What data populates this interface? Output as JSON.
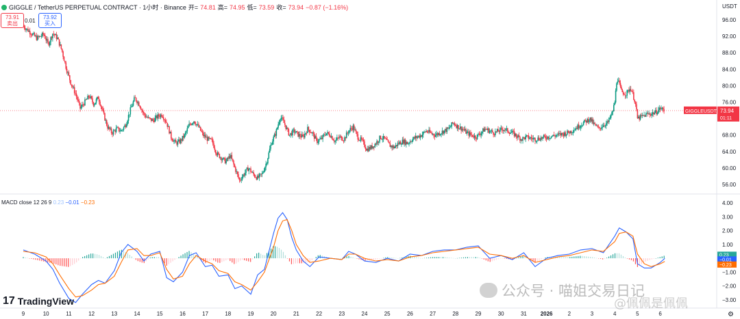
{
  "header": {
    "symbol": "GIGGLE / TetherUS PERPETUAL CONTRACT · 1小时 · Binance",
    "open_label": "开=",
    "open": "74.81",
    "high_label": "高=",
    "high": "74.95",
    "low_label": "低=",
    "low": "73.59",
    "close_label": "收=",
    "close": "73.94",
    "change": "−0.87 (−1.16%)",
    "sell_price": "73.91",
    "sell_label": "卖出",
    "spread": "0.01",
    "buy_price": "73.92",
    "buy_label": "买入",
    "currency": "USDT"
  },
  "macd_header": {
    "name": "MACD close 12 26 9",
    "histogram": "0.23",
    "macd": "−0.01",
    "signal": "−0.23"
  },
  "branding": {
    "logo_mark": "17",
    "logo_text": "TradingView",
    "watermark": "公众号 · 喵姐交易日记",
    "watermark2": "@佩佩是佩佩"
  },
  "chart_data": [
    {
      "type": "candlestick",
      "title": "GIGGLE / TetherUS PERPETUAL CONTRACT · 1小时 · Binance",
      "xlabel": "",
      "ylabel": "USDT",
      "x_ticks": [
        "9",
        "10",
        "11",
        "12",
        "13",
        "14",
        "15",
        "16",
        "17",
        "18",
        "19",
        "20",
        "21",
        "22",
        "23",
        "24",
        "25",
        "26",
        "27",
        "28",
        "29",
        "30",
        "31",
        "2026",
        "2",
        "3",
        "4",
        "5",
        "6"
      ],
      "y_ticks": [
        56,
        60,
        64,
        68,
        72,
        76,
        80,
        84,
        88,
        92,
        96
      ],
      "ylim": [
        54,
        98
      ],
      "close_path": [
        [
          9.0,
          94.5
        ],
        [
          9.3,
          93.0
        ],
        [
          9.6,
          91.5
        ],
        [
          9.9,
          92.5
        ],
        [
          10.1,
          90.0
        ],
        [
          10.3,
          92.8
        ],
        [
          10.5,
          91.5
        ],
        [
          10.7,
          88.5
        ],
        [
          10.9,
          84.0
        ],
        [
          11.1,
          80.5
        ],
        [
          11.3,
          78.0
        ],
        [
          11.5,
          74.5
        ],
        [
          11.7,
          76.0
        ],
        [
          11.9,
          77.5
        ],
        [
          12.1,
          75.5
        ],
        [
          12.3,
          77.2
        ],
        [
          12.5,
          73.5
        ],
        [
          12.7,
          70.0
        ],
        [
          12.9,
          68.5
        ],
        [
          13.1,
          69.5
        ],
        [
          13.3,
          69.0
        ],
        [
          13.5,
          70.5
        ],
        [
          13.7,
          74.0
        ],
        [
          13.9,
          77.0
        ],
        [
          14.1,
          75.5
        ],
        [
          14.3,
          73.0
        ],
        [
          14.5,
          72.0
        ],
        [
          14.7,
          71.5
        ],
        [
          14.9,
          72.5
        ],
        [
          15.1,
          73.0
        ],
        [
          15.3,
          71.0
        ],
        [
          15.5,
          67.5
        ],
        [
          15.7,
          66.0
        ],
        [
          15.9,
          66.5
        ],
        [
          16.1,
          68.0
        ],
        [
          16.3,
          70.5
        ],
        [
          16.5,
          71.5
        ],
        [
          16.7,
          70.0
        ],
        [
          16.9,
          68.0
        ],
        [
          17.1,
          67.0
        ],
        [
          17.3,
          66.5
        ],
        [
          17.5,
          63.5
        ],
        [
          17.7,
          62.5
        ],
        [
          17.9,
          61.5
        ],
        [
          18.1,
          63.0
        ],
        [
          18.3,
          60.0
        ],
        [
          18.5,
          57.0
        ],
        [
          18.7,
          58.5
        ],
        [
          18.9,
          60.0
        ],
        [
          19.1,
          58.5
        ],
        [
          19.3,
          57.5
        ],
        [
          19.5,
          58.5
        ],
        [
          19.7,
          61.5
        ],
        [
          19.9,
          66.0
        ],
        [
          20.1,
          68.5
        ],
        [
          20.3,
          72.5
        ],
        [
          20.5,
          70.5
        ],
        [
          20.7,
          68.0
        ],
        [
          20.9,
          69.0
        ],
        [
          21.1,
          68.0
        ],
        [
          21.3,
          67.5
        ],
        [
          21.5,
          69.5
        ],
        [
          21.7,
          68.5
        ],
        [
          21.9,
          66.5
        ],
        [
          22.1,
          67.0
        ],
        [
          22.3,
          68.5
        ],
        [
          22.5,
          68.0
        ],
        [
          22.7,
          66.5
        ],
        [
          22.9,
          67.5
        ],
        [
          23.1,
          67.0
        ],
        [
          23.3,
          69.0
        ],
        [
          23.5,
          70.0
        ],
        [
          23.7,
          67.5
        ],
        [
          23.9,
          66.5
        ],
        [
          24.1,
          64.5
        ],
        [
          24.3,
          65.0
        ],
        [
          24.5,
          66.0
        ],
        [
          24.7,
          67.5
        ],
        [
          24.9,
          67.0
        ],
        [
          25.1,
          65.5
        ],
        [
          25.3,
          65.0
        ],
        [
          25.5,
          66.0
        ],
        [
          25.7,
          66.5
        ],
        [
          25.9,
          66.0
        ],
        [
          26.1,
          67.0
        ],
        [
          26.3,
          67.5
        ],
        [
          26.5,
          68.0
        ],
        [
          26.7,
          69.0
        ],
        [
          26.9,
          68.5
        ],
        [
          27.1,
          68.0
        ],
        [
          27.3,
          68.5
        ],
        [
          27.5,
          69.0
        ],
        [
          27.7,
          69.5
        ],
        [
          27.9,
          71.0
        ],
        [
          28.1,
          70.0
        ],
        [
          28.3,
          69.5
        ],
        [
          28.5,
          68.5
        ],
        [
          28.9,
          67.5
        ],
        [
          29.1,
          68.5
        ],
        [
          29.3,
          69.5
        ],
        [
          29.7,
          68.5
        ],
        [
          30.1,
          69.5
        ],
        [
          30.5,
          68.5
        ],
        [
          30.9,
          67.0
        ],
        [
          31.1,
          67.5
        ],
        [
          31.5,
          67.0
        ],
        [
          32.0,
          67.5
        ],
        [
          32.5,
          68.0
        ],
        [
          32.9,
          68.5
        ],
        [
          33.1,
          69.0
        ],
        [
          33.5,
          70.5
        ],
        [
          33.9,
          72.0
        ],
        [
          34.1,
          70.5
        ],
        [
          34.3,
          69.5
        ],
        [
          34.5,
          70.5
        ],
        [
          34.7,
          71.0
        ],
        [
          34.9,
          73.5
        ],
        [
          35.0,
          76.0
        ],
        [
          35.1,
          82.0
        ],
        [
          35.3,
          78.5
        ],
        [
          35.5,
          78.0
        ],
        [
          35.7,
          79.5
        ],
        [
          35.9,
          76.0
        ],
        [
          36.0,
          72.0
        ],
        [
          36.2,
          72.5
        ],
        [
          36.4,
          73.0
        ],
        [
          36.6,
          73.2
        ],
        [
          36.8,
          73.5
        ],
        [
          37.0,
          74.5
        ],
        [
          37.2,
          73.94
        ]
      ]
    },
    {
      "type": "line",
      "title": "MACD close 12 26 9",
      "x_ticks": [
        "9",
        "10",
        "11",
        "12",
        "13",
        "14",
        "15",
        "16",
        "17",
        "18",
        "19",
        "20",
        "21",
        "22",
        "23",
        "24",
        "25",
        "26",
        "27",
        "28",
        "29",
        "30",
        "31",
        "2026",
        "2",
        "3",
        "4",
        "5",
        "6"
      ],
      "y_ticks": [
        -3.0,
        -2.0,
        -1.0,
        0.0,
        1.0,
        2.0,
        3.0,
        4.0
      ],
      "ylim": [
        -3.6,
        4.4
      ],
      "series": [
        {
          "name": "MACD",
          "color": "#2962ff",
          "x": [
            9.0,
            9.5,
            10.0,
            10.3,
            10.6,
            11.0,
            11.3,
            11.6,
            12.0,
            12.3,
            12.6,
            13.0,
            13.3,
            13.6,
            14.0,
            14.3,
            14.6,
            15.0,
            15.3,
            15.6,
            16.0,
            16.3,
            16.6,
            17.0,
            17.3,
            17.6,
            18.0,
            18.3,
            18.6,
            19.0,
            19.3,
            19.6,
            20.0,
            20.2,
            20.4,
            20.6,
            20.8,
            21.0,
            21.3,
            21.6,
            22.0,
            22.5,
            23.0,
            23.3,
            23.6,
            24.0,
            24.5,
            25.0,
            25.5,
            26.0,
            26.5,
            27.0,
            27.5,
            28.0,
            28.5,
            29.0,
            29.5,
            30.0,
            30.5,
            31.0,
            31.5,
            32.0,
            32.5,
            33.0,
            33.5,
            34.0,
            34.5,
            35.0,
            35.2,
            35.5,
            35.8,
            36.0,
            36.3,
            36.6,
            37.0,
            37.2
          ],
          "y": [
            0.6,
            0.3,
            -0.2,
            -0.8,
            -1.8,
            -2.9,
            -3.2,
            -2.6,
            -1.9,
            -1.6,
            -1.8,
            -0.9,
            0.4,
            1.0,
            0.5,
            -0.2,
            0.3,
            0.5,
            -1.4,
            -1.7,
            -1.0,
            0.2,
            0.4,
            -0.6,
            -0.5,
            -1.3,
            -1.2,
            -2.2,
            -2.0,
            -2.6,
            -1.2,
            -0.8,
            1.8,
            2.9,
            3.3,
            2.8,
            1.5,
            0.6,
            -0.2,
            -0.6,
            0.1,
            0.0,
            -0.1,
            0.5,
            0.3,
            -0.2,
            -0.3,
            0.0,
            -0.2,
            0.3,
            0.2,
            0.5,
            0.6,
            0.6,
            0.8,
            0.9,
            0.0,
            0.2,
            -0.1,
            0.4,
            -0.6,
            0.0,
            0.2,
            0.3,
            0.6,
            0.7,
            0.4,
            1.6,
            2.2,
            1.9,
            1.4,
            -0.4,
            -0.7,
            -0.7,
            -0.3,
            -0.01
          ]
        },
        {
          "name": "Signal",
          "color": "#ff6d00",
          "x": [
            9.0,
            9.5,
            10.0,
            10.3,
            10.6,
            11.0,
            11.3,
            11.6,
            12.0,
            12.3,
            12.6,
            13.0,
            13.3,
            13.6,
            14.0,
            14.3,
            14.6,
            15.0,
            15.3,
            15.6,
            16.0,
            16.3,
            16.6,
            17.0,
            17.3,
            17.6,
            18.0,
            18.3,
            18.6,
            19.0,
            19.3,
            19.6,
            20.0,
            20.2,
            20.4,
            20.6,
            20.8,
            21.0,
            21.3,
            21.6,
            22.0,
            22.5,
            23.0,
            23.3,
            23.6,
            24.0,
            24.5,
            25.0,
            25.5,
            26.0,
            26.5,
            27.0,
            27.5,
            28.0,
            28.5,
            29.0,
            29.5,
            30.0,
            30.5,
            31.0,
            31.5,
            32.0,
            32.5,
            33.0,
            33.5,
            34.0,
            34.5,
            35.0,
            35.2,
            35.5,
            35.8,
            36.0,
            36.3,
            36.6,
            37.0,
            37.2
          ],
          "y": [
            0.5,
            0.4,
            0.1,
            -0.4,
            -1.2,
            -2.2,
            -2.8,
            -2.7,
            -2.3,
            -1.9,
            -1.8,
            -1.3,
            -0.3,
            0.6,
            0.7,
            0.2,
            0.2,
            0.4,
            -0.8,
            -1.5,
            -1.3,
            -0.4,
            0.2,
            -0.2,
            -0.4,
            -0.9,
            -1.1,
            -1.7,
            -1.9,
            -2.3,
            -1.7,
            -1.0,
            0.8,
            2.0,
            2.7,
            2.8,
            2.0,
            1.0,
            0.2,
            -0.3,
            -0.2,
            0.0,
            -0.1,
            0.3,
            0.3,
            0.0,
            -0.2,
            -0.1,
            -0.2,
            0.1,
            0.2,
            0.4,
            0.5,
            0.6,
            0.7,
            0.8,
            0.3,
            0.2,
            0.0,
            0.2,
            -0.3,
            -0.1,
            0.1,
            0.2,
            0.4,
            0.6,
            0.5,
            1.2,
            1.8,
            1.9,
            1.6,
            0.3,
            -0.4,
            -0.6,
            -0.4,
            -0.23
          ]
        }
      ]
    }
  ]
}
